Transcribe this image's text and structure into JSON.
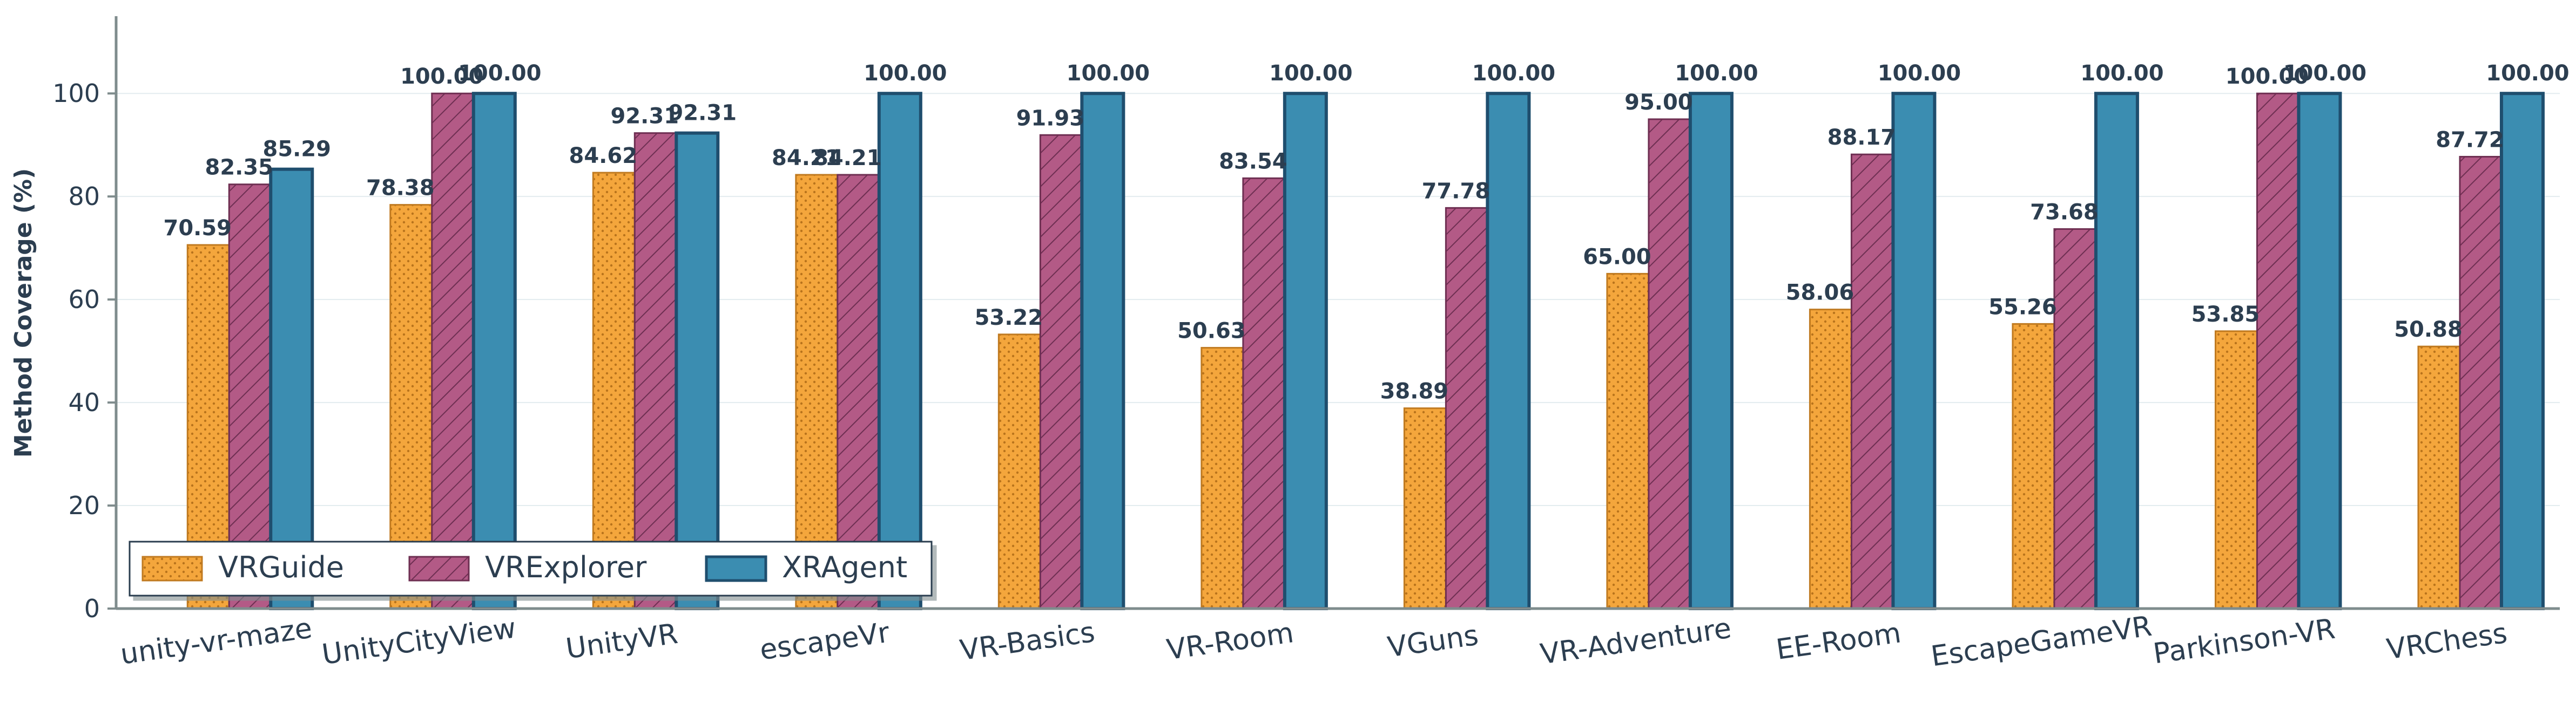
{
  "chart_data": {
    "type": "bar",
    "ylabel": "Method Coverage (%)",
    "xlabel": "",
    "ylim": [
      0,
      115
    ],
    "yticks": [
      0,
      20,
      40,
      60,
      80,
      100
    ],
    "grid": "horizontal",
    "legend_position": "lower-left",
    "categories": [
      "unity-vr-maze",
      "UnityCityView",
      "UnityVR",
      "escapeVr",
      "VR-Basics",
      "VR-Room",
      "VGuns",
      "VR-Adventure",
      "EE-Room",
      "EscapeGameVR",
      "Parkinson-VR",
      "VRChess"
    ],
    "series": [
      {
        "name": "VRGuide",
        "color": "#f4a63c",
        "edge": "#c07a20",
        "hatch": "dots",
        "values": [
          70.59,
          78.38,
          84.62,
          84.21,
          53.22,
          50.63,
          38.89,
          65.0,
          58.06,
          55.26,
          53.85,
          50.88
        ],
        "labels": [
          "70.59",
          "78.38",
          "84.62",
          "84.21",
          "53.22",
          "50.63",
          "38.89",
          "65.00",
          "58.06",
          "55.26",
          "53.85",
          "50.88"
        ]
      },
      {
        "name": "VRExplorer",
        "color": "#b35a86",
        "edge": "#6e2f52",
        "hatch": "diagonal",
        "values": [
          82.35,
          100.0,
          92.31,
          84.21,
          91.93,
          83.54,
          77.78,
          95.0,
          88.17,
          73.68,
          100.0,
          87.72
        ],
        "labels": [
          "82.35",
          "100.00",
          "92.31",
          "84.21",
          "91.93",
          "83.54",
          "77.78",
          "95.00",
          "88.17",
          "73.68",
          "100.00",
          "87.72"
        ]
      },
      {
        "name": "XRAgent",
        "color": "#3b8db1",
        "edge": "#1f4e6e",
        "hatch": "none",
        "values": [
          85.29,
          100.0,
          92.31,
          100.0,
          100.0,
          100.0,
          100.0,
          100.0,
          100.0,
          100.0,
          100.0,
          100.0
        ],
        "labels": [
          "85.29",
          "100.00",
          "92.31",
          "100.00",
          "100.00",
          "100.00",
          "100.00",
          "100.00",
          "100.00",
          "100.00",
          "100.00",
          "100.00"
        ]
      }
    ]
  }
}
